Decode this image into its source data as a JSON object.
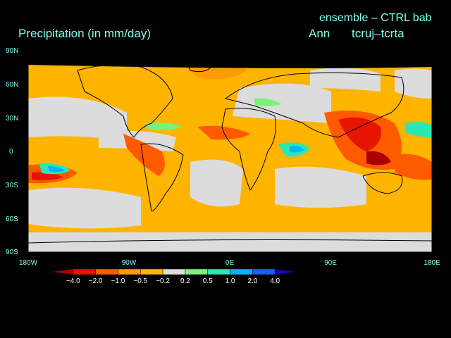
{
  "header": {
    "title": "Precipitation (in mm/day)",
    "ensemble": "ensemble – CTRL bab",
    "season": "Ann",
    "case": "tcruj–tcrta"
  },
  "axes": {
    "lat_labels": [
      "90N",
      "60N",
      "30N",
      "0",
      "30S",
      "60S",
      "90S"
    ],
    "lon_labels": [
      "180W",
      "90W",
      "0E",
      "90E",
      "180E"
    ]
  },
  "colorbar": {
    "labels": [
      "−4.0",
      "−2.0",
      "−1.0",
      "−0.5",
      "−0.2",
      "0.2",
      "0.5",
      "1.0",
      "2.0",
      "4.0"
    ],
    "colors": [
      "#a80000",
      "#e61400",
      "#ff5a00",
      "#ff9a00",
      "#ffb400",
      "#dcdcdc",
      "#7cf07c",
      "#28e8b4",
      "#00b4ff",
      "#1e5cff",
      "#1e00b4"
    ]
  },
  "map": {
    "background_color": "#dcdcdc",
    "contour_levels_mm_per_day": [
      -4.0,
      -2.0,
      -1.0,
      -0.5,
      -0.2,
      0.2,
      0.5,
      1.0,
      2.0,
      4.0
    ]
  }
}
